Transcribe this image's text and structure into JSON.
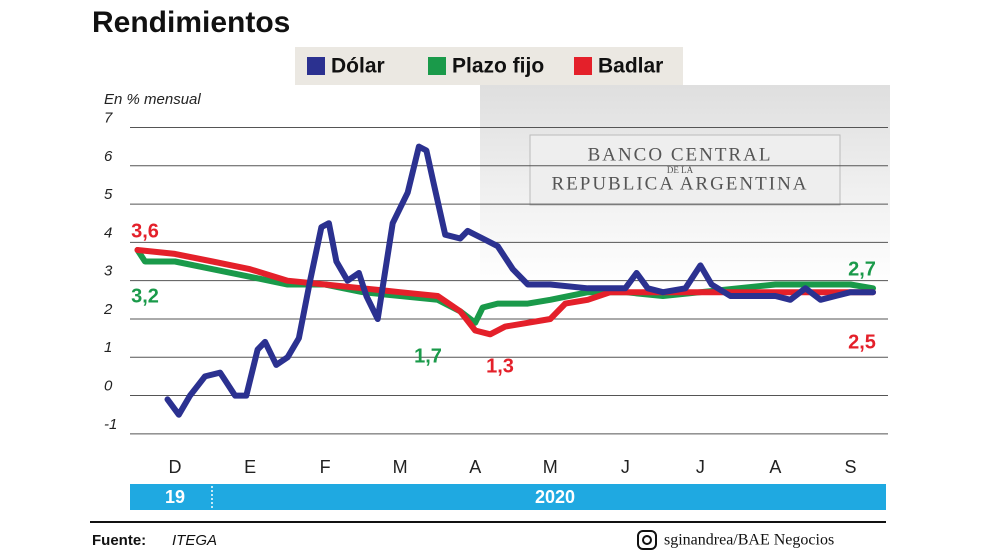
{
  "chart_data": {
    "type": "line",
    "title": "Rendimientos",
    "y_label": "En % mensual",
    "background_text": [
      "BANCO CENTRAL",
      "DE LA",
      "REPUBLICA ARGENTINA"
    ],
    "xlim": [
      -0.6,
      9.5
    ],
    "xticks": [
      {
        "value": 0,
        "label": "D"
      },
      {
        "value": 1,
        "label": "E"
      },
      {
        "value": 2,
        "label": "F"
      },
      {
        "value": 3,
        "label": "M"
      },
      {
        "value": 4,
        "label": "A"
      },
      {
        "value": 5,
        "label": "M"
      },
      {
        "value": 6,
        "label": "J"
      },
      {
        "value": 7,
        "label": "J"
      },
      {
        "value": 8,
        "label": "A"
      },
      {
        "value": 9,
        "label": "S"
      }
    ],
    "ylim": [
      -1.5,
      7.3
    ],
    "yticks": [
      -1,
      0,
      1,
      2,
      3,
      4,
      5,
      6,
      7
    ],
    "grid": true,
    "series": [
      {
        "name": "Dólar",
        "color": "#2b3190",
        "x": [
          -0.1,
          0.05,
          0.2,
          0.4,
          0.6,
          0.8,
          0.95,
          1.1,
          1.2,
          1.35,
          1.5,
          1.65,
          1.8,
          1.95,
          2.05,
          2.15,
          2.3,
          2.45,
          2.55,
          2.7,
          2.9,
          3.1,
          3.25,
          3.35,
          3.45,
          3.6,
          3.8,
          3.9,
          4.1,
          4.3,
          4.5,
          4.7,
          5.0,
          5.5,
          5.8,
          6.0,
          6.15,
          6.3,
          6.5,
          6.8,
          7.0,
          7.15,
          7.4,
          7.7,
          8.0,
          8.2,
          8.4,
          8.6,
          8.8,
          9.0,
          9.3
        ],
        "values": [
          -0.1,
          -0.5,
          0,
          0.5,
          0.6,
          0,
          0,
          1.2,
          1.4,
          0.8,
          1.0,
          1.5,
          3.0,
          4.4,
          4.5,
          3.5,
          3.0,
          3.2,
          2.6,
          2.0,
          4.5,
          5.3,
          6.5,
          6.4,
          5.5,
          4.2,
          4.1,
          4.3,
          4.1,
          3.9,
          3.3,
          2.9,
          2.9,
          2.8,
          2.8,
          2.8,
          3.2,
          2.8,
          2.7,
          2.8,
          3.4,
          2.9,
          2.6,
          2.6,
          2.6,
          2.5,
          2.8,
          2.5,
          2.6,
          2.7,
          2.7
        ]
      },
      {
        "name": "Plazo fijo",
        "color": "#1a9a4a",
        "x": [
          -0.5,
          -0.4,
          0,
          0.5,
          1,
          1.5,
          2,
          2.5,
          3,
          3.5,
          3.8,
          4.0,
          4.1,
          4.3,
          4.7,
          5,
          5.5,
          6,
          6.5,
          7,
          7.5,
          8,
          8.5,
          9,
          9.3
        ],
        "values": [
          3.8,
          3.5,
          3.5,
          3.3,
          3.1,
          2.9,
          2.9,
          2.7,
          2.6,
          2.5,
          2.2,
          1.9,
          2.3,
          2.4,
          2.4,
          2.5,
          2.7,
          2.7,
          2.6,
          2.7,
          2.8,
          2.9,
          2.9,
          2.9,
          2.8
        ]
      },
      {
        "name": "Badlar",
        "color": "#e4202a",
        "x": [
          -0.5,
          0,
          0.5,
          1,
          1.5,
          2,
          2.5,
          3,
          3.5,
          3.8,
          4.0,
          4.2,
          4.4,
          4.7,
          5.0,
          5.2,
          5.5,
          5.8,
          6.3,
          7,
          7.5,
          8,
          8.5,
          9,
          9.3
        ],
        "values": [
          3.8,
          3.7,
          3.5,
          3.3,
          3.0,
          2.9,
          2.8,
          2.7,
          2.6,
          2.2,
          1.7,
          1.6,
          1.8,
          1.9,
          2.0,
          2.4,
          2.5,
          2.7,
          2.7,
          2.7,
          2.7,
          2.7,
          2.7,
          2.7,
          2.7
        ]
      }
    ],
    "annotations": [
      {
        "text": "3,6",
        "color": "#e4202a"
      },
      {
        "text": "3,2",
        "color": "#1a9a4a"
      },
      {
        "text": "1,7",
        "color": "#1a9a4a"
      },
      {
        "text": "1,3",
        "color": "#e4202a"
      },
      {
        "text": "2,7",
        "color": "#1a9a4a"
      },
      {
        "text": "2,5",
        "color": "#e4202a"
      }
    ],
    "year_labels": [
      "19",
      "2020"
    ],
    "source_label": "Fuente:",
    "source": "ITEGA",
    "credit": "sginandrea/BAE Negocios"
  }
}
